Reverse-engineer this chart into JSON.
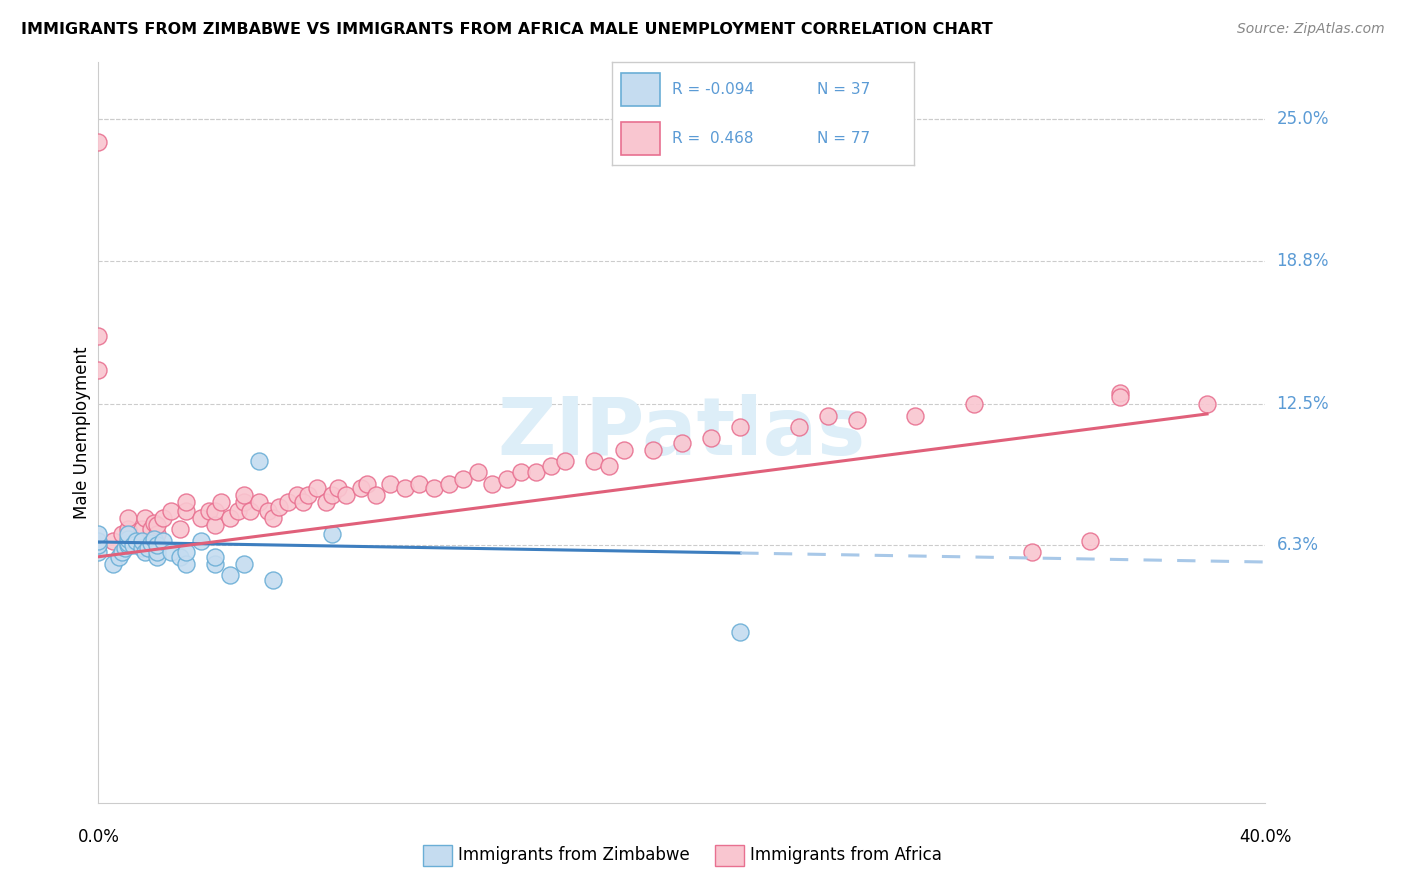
{
  "title": "IMMIGRANTS FROM ZIMBABWE VS IMMIGRANTS FROM AFRICA MALE UNEMPLOYMENT CORRELATION CHART",
  "source": "Source: ZipAtlas.com",
  "ylabel": "Male Unemployment",
  "ytick_labels": [
    "25.0%",
    "18.8%",
    "12.5%",
    "6.3%"
  ],
  "ytick_values": [
    0.25,
    0.188,
    0.125,
    0.063
  ],
  "xlim": [
    0.0,
    0.4
  ],
  "ylim": [
    -0.05,
    0.275
  ],
  "color_zimbabwe_fill": "#c5dcf0",
  "color_zimbabwe_edge": "#6aaed6",
  "color_africa_fill": "#f9c6d0",
  "color_africa_edge": "#e87090",
  "color_blue_line": "#3d7ebf",
  "color_pink_line": "#e0607a",
  "color_blue_dashed": "#a8c8e8",
  "color_axis_right": "#5b9bd5",
  "background_color": "#ffffff",
  "grid_color": "#cccccc",
  "legend_color_r": "#5b9bd5",
  "legend_color_n": "#5b9bd5",
  "watermark_color": "#ddeef8",
  "zimbabwe_x": [
    0.0,
    0.0,
    0.0,
    0.0,
    0.005,
    0.007,
    0.008,
    0.009,
    0.01,
    0.01,
    0.01,
    0.01,
    0.012,
    0.013,
    0.015,
    0.015,
    0.016,
    0.017,
    0.018,
    0.019,
    0.02,
    0.02,
    0.02,
    0.022,
    0.025,
    0.028,
    0.03,
    0.03,
    0.035,
    0.04,
    0.04,
    0.045,
    0.05,
    0.055,
    0.06,
    0.08,
    0.22
  ],
  "zimbabwe_y": [
    0.06,
    0.063,
    0.065,
    0.068,
    0.055,
    0.058,
    0.06,
    0.062,
    0.063,
    0.064,
    0.066,
    0.068,
    0.063,
    0.065,
    0.062,
    0.065,
    0.06,
    0.062,
    0.064,
    0.066,
    0.058,
    0.06,
    0.063,
    0.065,
    0.06,
    0.058,
    0.055,
    0.06,
    0.065,
    0.055,
    0.058,
    0.05,
    0.055,
    0.1,
    0.048,
    0.068,
    0.025
  ],
  "africa_x": [
    0.0,
    0.0,
    0.005,
    0.008,
    0.01,
    0.01,
    0.012,
    0.015,
    0.016,
    0.017,
    0.018,
    0.019,
    0.02,
    0.02,
    0.022,
    0.025,
    0.028,
    0.03,
    0.03,
    0.035,
    0.038,
    0.04,
    0.04,
    0.042,
    0.045,
    0.048,
    0.05,
    0.05,
    0.052,
    0.055,
    0.058,
    0.06,
    0.062,
    0.065,
    0.068,
    0.07,
    0.072,
    0.075,
    0.078,
    0.08,
    0.082,
    0.085,
    0.09,
    0.092,
    0.095,
    0.1,
    0.105,
    0.11,
    0.115,
    0.12,
    0.125,
    0.13,
    0.135,
    0.14,
    0.145,
    0.15,
    0.155,
    0.16,
    0.17,
    0.175,
    0.18,
    0.19,
    0.2,
    0.21,
    0.22,
    0.24,
    0.25,
    0.26,
    0.28,
    0.3,
    0.32,
    0.34,
    0.35,
    0.35,
    0.38,
    0.0,
    0.0
  ],
  "africa_y": [
    0.063,
    0.24,
    0.065,
    0.068,
    0.07,
    0.075,
    0.065,
    0.07,
    0.075,
    0.065,
    0.07,
    0.073,
    0.068,
    0.072,
    0.075,
    0.078,
    0.07,
    0.078,
    0.082,
    0.075,
    0.078,
    0.072,
    0.078,
    0.082,
    0.075,
    0.078,
    0.082,
    0.085,
    0.078,
    0.082,
    0.078,
    0.075,
    0.08,
    0.082,
    0.085,
    0.082,
    0.085,
    0.088,
    0.082,
    0.085,
    0.088,
    0.085,
    0.088,
    0.09,
    0.085,
    0.09,
    0.088,
    0.09,
    0.088,
    0.09,
    0.092,
    0.095,
    0.09,
    0.092,
    0.095,
    0.095,
    0.098,
    0.1,
    0.1,
    0.098,
    0.105,
    0.105,
    0.108,
    0.11,
    0.115,
    0.115,
    0.12,
    0.118,
    0.12,
    0.125,
    0.06,
    0.065,
    0.13,
    0.128,
    0.125,
    0.155,
    0.14
  ]
}
